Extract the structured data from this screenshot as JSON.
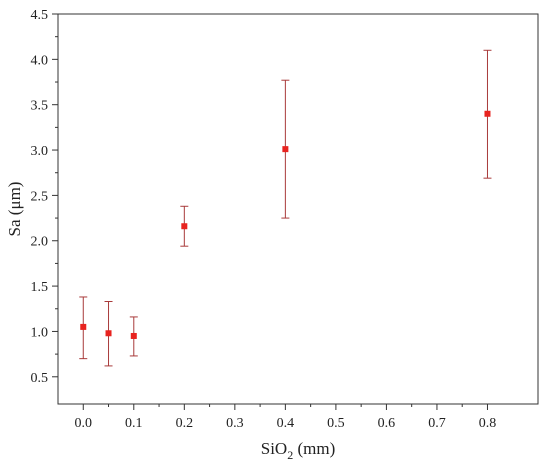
{
  "chart_data": {
    "type": "scatter",
    "xlabel_main": "SiO",
    "xlabel_sub": "2",
    "xlabel_rest": " (mm)",
    "ylabel": "Sa (μm)",
    "xlim": [
      -0.05,
      0.9
    ],
    "ylim": [
      0.2,
      4.5
    ],
    "xticks": [
      0.0,
      0.1,
      0.2,
      0.3,
      0.4,
      0.5,
      0.6,
      0.7,
      0.8
    ],
    "xtick_labels": [
      "0.0",
      "0.1",
      "0.2",
      "0.3",
      "0.4",
      "0.5",
      "0.6",
      "0.7",
      "0.8"
    ],
    "yticks": [
      0.5,
      1.0,
      1.5,
      2.0,
      2.5,
      3.0,
      3.5,
      4.0,
      4.5
    ],
    "ytick_labels": [
      "0.5",
      "1.0",
      "1.5",
      "2.0",
      "2.5",
      "3.0",
      "3.5",
      "4.0",
      "4.5"
    ],
    "grid": false,
    "marker_color": "#e8231f",
    "errorbar_color": "#a83a3a",
    "points": [
      {
        "x": 0.0,
        "y": 1.05,
        "err_low": 0.7,
        "err_high": 1.38
      },
      {
        "x": 0.05,
        "y": 0.98,
        "err_low": 0.62,
        "err_high": 1.33
      },
      {
        "x": 0.1,
        "y": 0.95,
        "err_low": 0.73,
        "err_high": 1.16
      },
      {
        "x": 0.2,
        "y": 2.16,
        "err_low": 1.94,
        "err_high": 2.38
      },
      {
        "x": 0.4,
        "y": 3.01,
        "err_low": 2.25,
        "err_high": 3.77
      },
      {
        "x": 0.8,
        "y": 3.4,
        "err_low": 2.69,
        "err_high": 4.1
      }
    ]
  }
}
